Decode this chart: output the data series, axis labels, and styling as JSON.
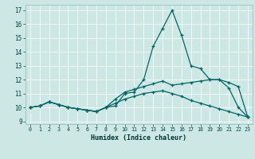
{
  "xlabel": "Humidex (Indice chaleur)",
  "background_color": "#cde8e4",
  "grid_color": "#ffffff",
  "line_color": "#006666",
  "xlim": [
    -0.5,
    23.5
  ],
  "ylim": [
    8.8,
    17.4
  ],
  "yticks": [
    9,
    10,
    11,
    12,
    13,
    14,
    15,
    16,
    17
  ],
  "xticks": [
    0,
    1,
    2,
    3,
    4,
    5,
    6,
    7,
    8,
    9,
    10,
    11,
    12,
    13,
    14,
    15,
    16,
    17,
    18,
    19,
    20,
    21,
    22,
    23
  ],
  "series1_x": [
    0,
    1,
    2,
    3,
    4,
    5,
    6,
    7,
    8,
    9,
    10,
    11,
    12,
    13,
    14,
    15,
    16,
    17,
    18,
    19,
    20,
    21,
    22,
    23
  ],
  "series1_y": [
    10.0,
    10.1,
    10.4,
    10.2,
    10.0,
    9.9,
    9.8,
    9.7,
    10.0,
    10.1,
    11.0,
    11.1,
    12.0,
    14.4,
    15.7,
    17.0,
    15.2,
    13.0,
    12.8,
    12.0,
    12.0,
    11.4,
    10.0,
    9.3
  ],
  "series2_x": [
    0,
    1,
    2,
    3,
    4,
    5,
    6,
    7,
    8,
    9,
    10,
    11,
    12,
    13,
    14,
    15,
    16,
    17,
    18,
    19,
    20,
    21,
    22,
    23
  ],
  "series2_y": [
    10.0,
    10.1,
    10.4,
    10.2,
    10.0,
    9.9,
    9.8,
    9.7,
    10.0,
    10.6,
    11.1,
    11.3,
    11.5,
    11.7,
    11.9,
    11.6,
    11.7,
    11.8,
    11.9,
    12.0,
    12.0,
    11.8,
    11.5,
    9.3
  ],
  "series3_x": [
    0,
    1,
    2,
    3,
    4,
    5,
    6,
    7,
    8,
    9,
    10,
    11,
    12,
    13,
    14,
    15,
    16,
    17,
    18,
    19,
    20,
    21,
    22,
    23
  ],
  "series3_y": [
    10.0,
    10.1,
    10.4,
    10.2,
    10.0,
    9.9,
    9.8,
    9.7,
    10.0,
    10.3,
    10.6,
    10.8,
    11.0,
    11.1,
    11.2,
    11.0,
    10.8,
    10.5,
    10.3,
    10.1,
    9.9,
    9.7,
    9.5,
    9.3
  ]
}
